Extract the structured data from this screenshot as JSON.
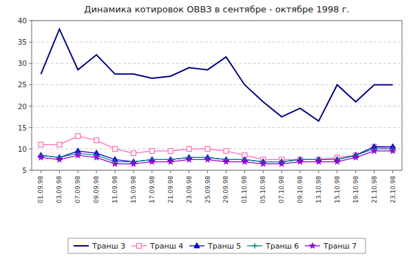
{
  "chart_data": {
    "type": "line",
    "title": "Динамика котировок ОВВЗ в сентябре - октябре 1998 г.",
    "categories": [
      "01.09.98",
      "03.09.98",
      "07.09.98",
      "09.09.98",
      "11.09.98",
      "15.09.98",
      "17.09.98",
      "21.09.98",
      "23.09.98",
      "25.09.98",
      "29.09.98",
      "01.10.98",
      "05.10.98",
      "07.10.98",
      "09.10.98",
      "13.10.98",
      "15.10.98",
      "19.10.98",
      "21.10.98",
      "23.10.98"
    ],
    "series": [
      {
        "name": "Транш 3",
        "color": "#000080",
        "marker": "none",
        "values": [
          27.5,
          38.0,
          28.5,
          32.0,
          27.5,
          27.5,
          26.5,
          27.0,
          29.0,
          28.5,
          31.5,
          25.0,
          21.0,
          17.5,
          19.5,
          16.5,
          25.0,
          21.0,
          25.0,
          25.0
        ]
      },
      {
        "name": "Транш 4",
        "color": "#FF69B4",
        "marker": "square",
        "values": [
          11.0,
          11.0,
          13.0,
          12.0,
          10.0,
          9.0,
          9.5,
          9.5,
          10.0,
          10.0,
          9.5,
          8.5,
          7.5,
          7.5,
          7.5,
          7.5,
          8.0,
          8.5,
          10.5,
          10.0
        ]
      },
      {
        "name": "Транш 5",
        "color": "#0000CD",
        "marker": "triangle",
        "values": [
          8.5,
          8.0,
          9.5,
          9.0,
          7.5,
          7.0,
          7.5,
          7.5,
          8.0,
          8.0,
          7.5,
          7.5,
          7.0,
          7.0,
          7.5,
          7.5,
          7.5,
          8.5,
          10.5,
          10.5
        ]
      },
      {
        "name": "Транш 6",
        "color": "#008B8B",
        "marker": "plus",
        "values": [
          8.5,
          8.0,
          9.0,
          8.5,
          7.0,
          7.0,
          7.5,
          7.5,
          8.0,
          8.0,
          7.5,
          7.5,
          7.0,
          7.0,
          7.5,
          7.5,
          7.5,
          8.5,
          10.0,
          10.0
        ]
      },
      {
        "name": "Транш 7",
        "color": "#9400D3",
        "marker": "star",
        "values": [
          8.0,
          7.5,
          8.5,
          8.0,
          6.5,
          6.5,
          7.0,
          7.0,
          7.5,
          7.5,
          7.0,
          7.0,
          6.5,
          6.5,
          7.0,
          7.0,
          7.0,
          8.0,
          9.5,
          9.5
        ]
      }
    ],
    "ylim": [
      5,
      40
    ],
    "yticks": [
      5,
      10,
      15,
      20,
      25,
      30,
      35,
      40
    ],
    "grid": true,
    "legend": "bottom"
  }
}
